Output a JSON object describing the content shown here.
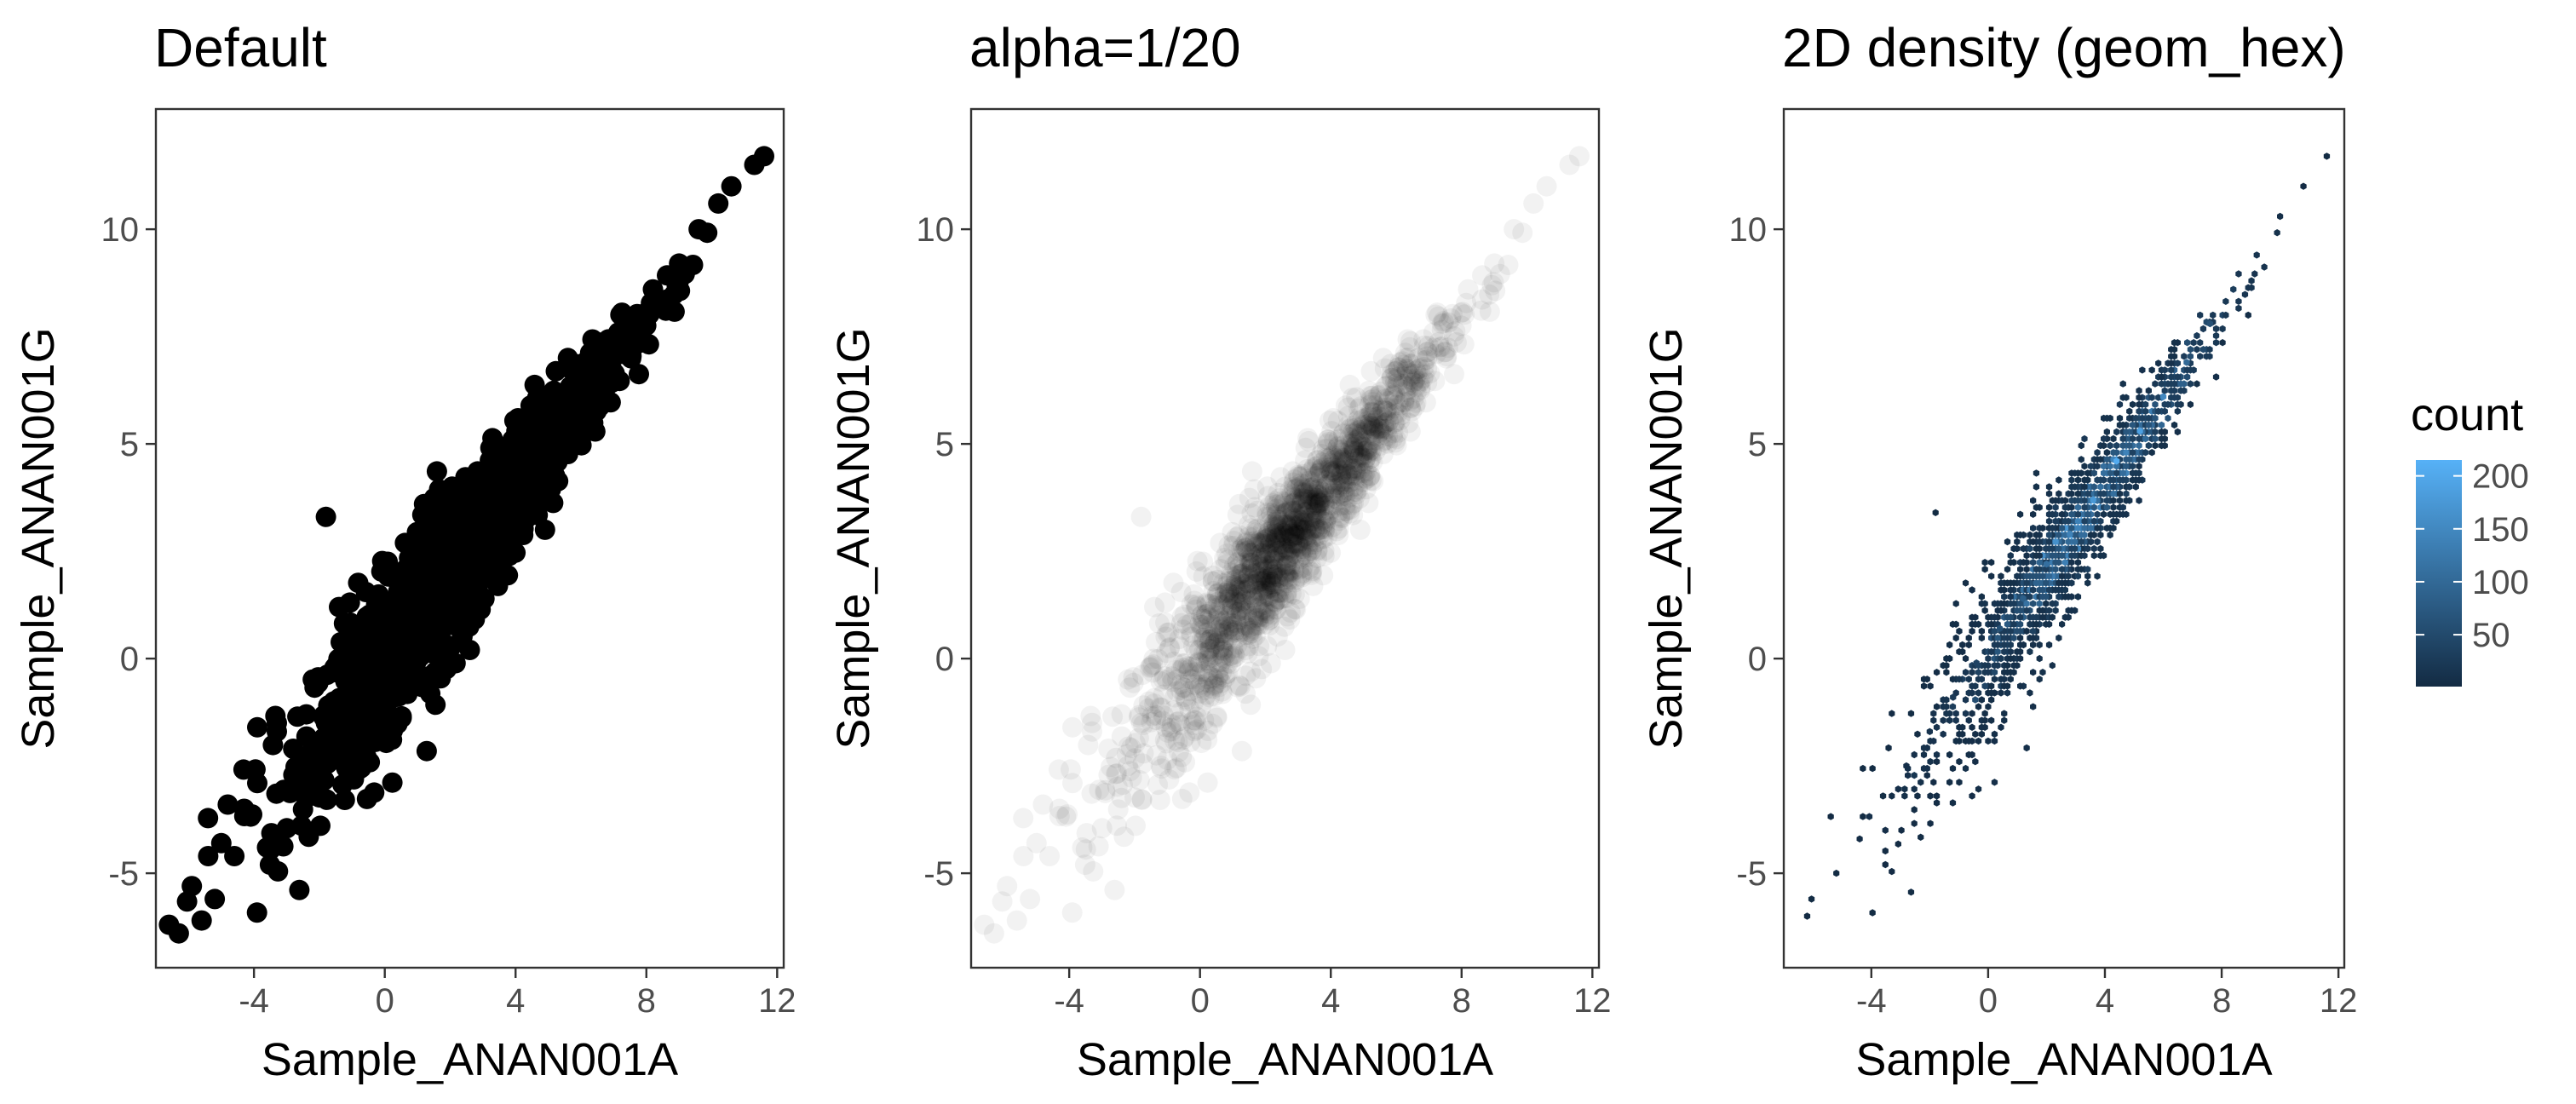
{
  "chart_data": [
    {
      "type": "scatter",
      "title": "Default",
      "xlabel": "Sample_ANAN001A",
      "ylabel": "Sample_ANAN001G",
      "xlim": [
        -7,
        12.2
      ],
      "ylim": [
        -7.2,
        12.8
      ],
      "xticks": [
        -4,
        0,
        4,
        8,
        12
      ],
      "yticks": [
        -5,
        0,
        5,
        10
      ],
      "xtick_labels": [
        "-4",
        "0",
        "4",
        "8",
        "12"
      ],
      "ytick_labels": [
        "-5",
        "0",
        "5",
        "10"
      ],
      "grid": false,
      "point_color": "#000000",
      "point_alpha": 1,
      "series": [
        {
          "x": [
            -6.6,
            -6.3,
            -5.9,
            -5.6,
            -5.4,
            -5.2,
            -5.0,
            -4.6,
            -4.8,
            -4.3,
            -3.9,
            -3.6,
            -3.3,
            -3.9,
            -2.8,
            -2.4,
            -1.8,
            -1.5,
            -1.2,
            -1.0,
            -0.6,
            -0.2,
            0.3,
            -1.8,
            -1.4,
            0.9,
            1.5,
            2.0,
            2.3,
            2.8,
            3.3,
            4.6,
            5.0,
            5.3,
            6.0,
            6.6,
            7.4,
            8.2,
            9.0,
            9.6,
            10.2,
            10.6,
            11.3,
            11.6,
            -3.3,
            1.2,
            2.6,
            2.6,
            1.4,
            4.9,
            5.6
          ],
          "y": [
            -6.2,
            -6.4,
            -5.3,
            -6.1,
            -4.6,
            -5.6,
            -4.3,
            -4.6,
            -3.4,
            -3.5,
            -2.9,
            -4.4,
            -1.7,
            -1.6,
            -2.1,
            -1.3,
            -1.5,
            -0.2,
            -2.5,
            0.6,
            -0.6,
            0.3,
            -0.9,
            3.3,
            1.2,
            1.5,
            2.3,
            1.9,
            2.8,
            3.3,
            3.7,
            5.0,
            4.2,
            5.4,
            5.9,
            6.7,
            7.8,
            8.6,
            9.2,
            10.0,
            10.6,
            11.0,
            11.5,
            11.7,
            -1.5,
            3.6,
            0.2,
            4.0,
            -0.4,
            3.0,
            7.0
          ]
        }
      ]
    },
    {
      "type": "scatter",
      "title": "alpha=1/20",
      "xlabel": "Sample_ANAN001A",
      "ylabel": "Sample_ANAN001G",
      "xlim": [
        -7,
        12.2
      ],
      "ylim": [
        -7.2,
        12.8
      ],
      "xticks": [
        -4,
        0,
        4,
        8,
        12
      ],
      "yticks": [
        -5,
        0,
        5,
        10
      ],
      "xtick_labels": [
        "-4",
        "0",
        "4",
        "8",
        "12"
      ],
      "ytick_labels": [
        "-5",
        "0",
        "5",
        "10"
      ],
      "grid": false,
      "point_color": "#000000",
      "point_alpha": 0.05,
      "series": [
        {
          "x": [
            -6.6,
            -6.3,
            -5.9,
            -5.6,
            -5.4,
            -5.2,
            -5.0,
            -4.6,
            -4.8,
            -4.3,
            -3.9,
            -3.6,
            -3.3,
            -3.9,
            -2.8,
            -2.4,
            -1.8,
            -1.5,
            -1.2,
            -1.0,
            -0.6,
            -0.2,
            0.3,
            -1.8,
            -1.4,
            0.9,
            1.5,
            2.0,
            2.3,
            2.8,
            3.3,
            4.6,
            5.0,
            5.3,
            6.0,
            6.6,
            7.4,
            8.2,
            9.0,
            9.6,
            10.2,
            10.6,
            11.3,
            11.6,
            -3.3,
            1.2,
            2.6,
            2.6,
            1.4,
            4.9,
            5.6
          ],
          "y": [
            -6.2,
            -6.4,
            -5.3,
            -6.1,
            -4.6,
            -5.6,
            -4.3,
            -4.6,
            -3.4,
            -3.5,
            -2.9,
            -4.4,
            -1.7,
            -1.6,
            -2.1,
            -1.3,
            -1.5,
            -0.2,
            -2.5,
            0.6,
            -0.6,
            0.3,
            -0.9,
            3.3,
            1.2,
            1.5,
            2.3,
            1.9,
            2.8,
            3.3,
            3.7,
            5.0,
            4.2,
            5.4,
            5.9,
            6.7,
            7.8,
            8.6,
            9.2,
            10.0,
            10.6,
            11.0,
            11.5,
            11.7,
            -1.5,
            3.6,
            0.2,
            4.0,
            -0.4,
            3.0,
            7.0
          ]
        }
      ]
    },
    {
      "type": "heatmap",
      "title": "2D density (geom_hex)",
      "xlabel": "Sample_ANAN001A",
      "ylabel": "Sample_ANAN001G",
      "xlim": [
        -7,
        12.2
      ],
      "ylim": [
        -7.2,
        12.8
      ],
      "xticks": [
        -4,
        0,
        4,
        8,
        12
      ],
      "yticks": [
        -5,
        0,
        5,
        10
      ],
      "xtick_labels": [
        "-4",
        "0",
        "4",
        "8",
        "12"
      ],
      "ytick_labels": [
        "-5",
        "0",
        "5",
        "10"
      ],
      "grid": false,
      "legend": {
        "title": "count",
        "placement": "right",
        "labels": [
          "200",
          "150",
          "100",
          "50"
        ],
        "values": [
          200,
          150,
          100,
          50
        ],
        "range": [
          1,
          215
        ],
        "color_low": "#132b43",
        "color_high": "#56b1f7"
      },
      "cells": [
        {
          "x": -6.2,
          "y": -6.0,
          "count": 1
        },
        {
          "x": -5.2,
          "y": -5.0,
          "count": 2
        },
        {
          "x": -4.4,
          "y": -4.2,
          "count": 3
        },
        {
          "x": -3.6,
          "y": -3.2,
          "count": 5
        },
        {
          "x": -2.8,
          "y": -2.5,
          "count": 8
        },
        {
          "x": -2.0,
          "y": -1.7,
          "count": 14
        },
        {
          "x": -1.2,
          "y": -0.9,
          "count": 25
        },
        {
          "x": -0.4,
          "y": -0.1,
          "count": 40
        },
        {
          "x": 0.4,
          "y": 0.7,
          "count": 60
        },
        {
          "x": 1.2,
          "y": 1.4,
          "count": 85
        },
        {
          "x": 2.0,
          "y": 2.2,
          "count": 110
        },
        {
          "x": 2.8,
          "y": 2.9,
          "count": 140
        },
        {
          "x": 3.6,
          "y": 3.7,
          "count": 175
        },
        {
          "x": 4.4,
          "y": 4.6,
          "count": 205
        },
        {
          "x": 5.2,
          "y": 5.3,
          "count": 190
        },
        {
          "x": 6.0,
          "y": 6.1,
          "count": 150
        },
        {
          "x": 6.8,
          "y": 6.9,
          "count": 100
        },
        {
          "x": 7.6,
          "y": 7.8,
          "count": 60
        },
        {
          "x": 8.4,
          "y": 8.6,
          "count": 30
        },
        {
          "x": 9.2,
          "y": 9.4,
          "count": 15
        },
        {
          "x": 10.0,
          "y": 10.3,
          "count": 7
        },
        {
          "x": 10.8,
          "y": 11.0,
          "count": 3
        },
        {
          "x": 11.6,
          "y": 11.7,
          "count": 1
        },
        {
          "x": -1.8,
          "y": 3.4,
          "count": 1
        }
      ]
    }
  ]
}
